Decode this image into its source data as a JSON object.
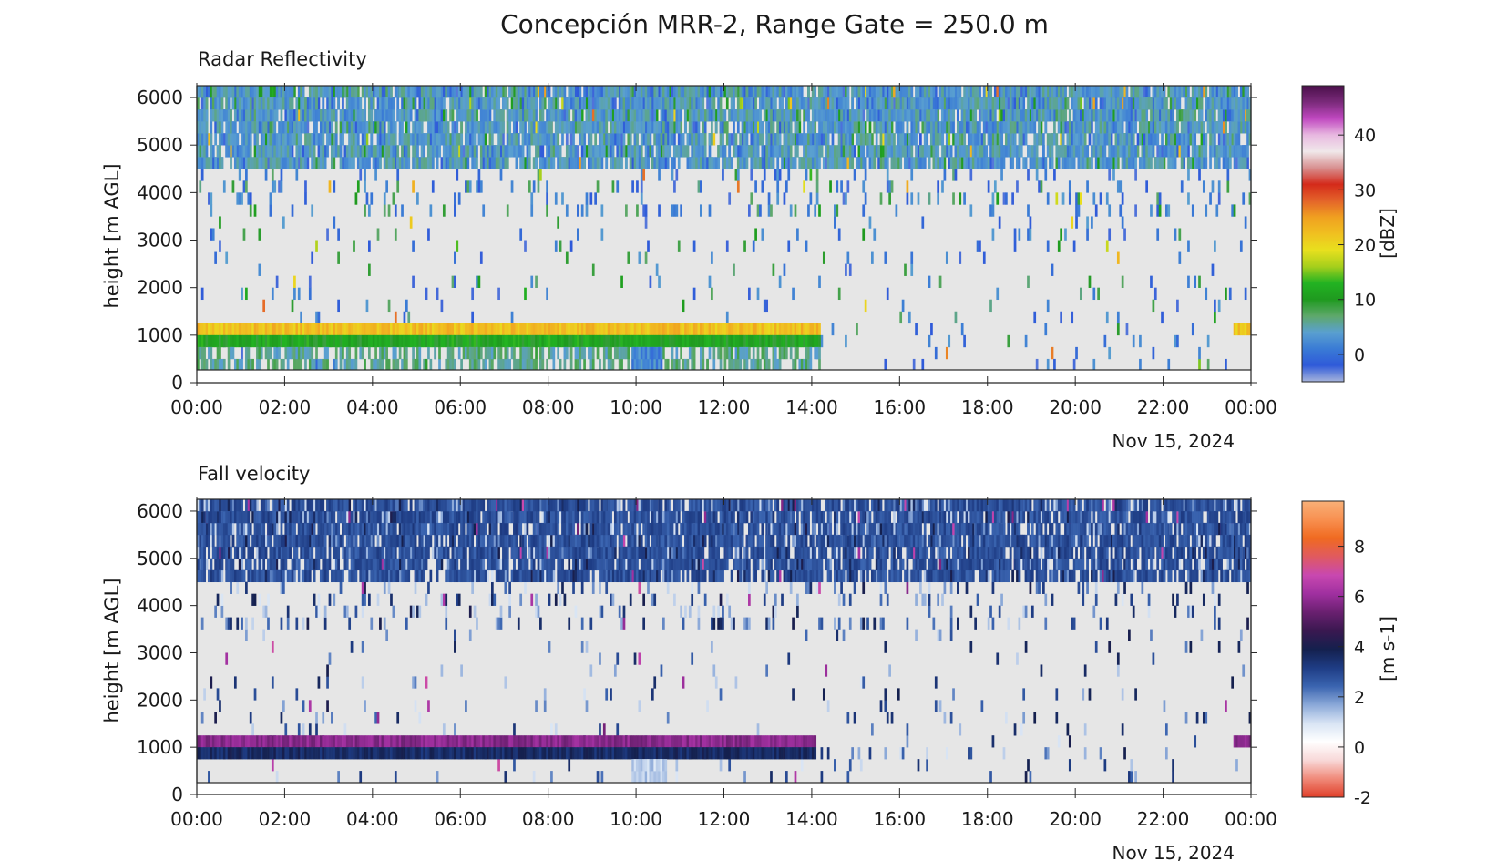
{
  "figure": {
    "title": "Concepción MRR-2, Range Gate = 250.0 m"
  },
  "chart_data": [
    {
      "type": "heatmap",
      "title": "Radar Reflectivity",
      "ylabel": "height [m AGL]",
      "date_label": "Nov 15, 2024",
      "x_ticks": [
        "00:00",
        "02:00",
        "04:00",
        "06:00",
        "08:00",
        "10:00",
        "12:00",
        "14:00",
        "16:00",
        "18:00",
        "20:00",
        "22:00",
        "00:00"
      ],
      "xlim_hours": [
        0,
        24
      ],
      "y_ticks": [
        0,
        1000,
        2000,
        3000,
        4000,
        5000,
        6000
      ],
      "ylim": [
        0,
        6250
      ],
      "data_height_range": [
        250,
        6250
      ],
      "grid": false,
      "background_color": "#e6e6e6",
      "colorbar": {
        "label": "[dBZ]",
        "range": [
          -5,
          49
        ],
        "ticks": [
          0,
          10,
          20,
          30,
          40
        ],
        "colors": [
          "#a7b4dc",
          "#2f5ad9",
          "#3a7bd5",
          "#5aa0d0",
          "#5ea86a",
          "#1f9a1f",
          "#22b322",
          "#a6cf1c",
          "#e8e01e",
          "#f0c020",
          "#f0a020",
          "#e4642a",
          "#d42a1a",
          "#d89090",
          "#f0e8ea",
          "#e8b8e0",
          "#c048c0",
          "#7a2a7a",
          "#4a0f4a"
        ]
      },
      "features": [
        {
          "name": "bright band",
          "time_hours": [
            0,
            14.2
          ],
          "height_m": [
            1000,
            1250
          ],
          "value_dbz": 22
        },
        {
          "name": "rain below melting layer",
          "time_hours": [
            0,
            14.2
          ],
          "height_m": [
            750,
            1000
          ],
          "value_dbz": 11
        },
        {
          "name": "light rain to surface",
          "time_hours": [
            0,
            14.2
          ],
          "height_m": [
            250,
            750
          ],
          "value_dbz": 6
        },
        {
          "name": "bright band (late)",
          "time_hours": [
            23.6,
            24
          ],
          "height_m": [
            1000,
            1250
          ],
          "value_dbz": 22
        },
        {
          "name": "strong rain column",
          "time_hours": [
            9.9,
            10.6
          ],
          "height_m": [
            250,
            750
          ],
          "value_dbz": 2
        },
        {
          "name": "upper echo layer",
          "time_hours": [
            0,
            24
          ],
          "height_m": [
            4500,
            6250
          ],
          "value_dbz": 4
        }
      ]
    },
    {
      "type": "heatmap",
      "title": "Fall velocity",
      "ylabel": "height [m AGL]",
      "date_label": "Nov 15, 2024",
      "x_ticks": [
        "00:00",
        "02:00",
        "04:00",
        "06:00",
        "08:00",
        "10:00",
        "12:00",
        "14:00",
        "16:00",
        "18:00",
        "20:00",
        "22:00",
        "00:00"
      ],
      "xlim_hours": [
        0,
        24
      ],
      "y_ticks": [
        0,
        1000,
        2000,
        3000,
        4000,
        5000,
        6000
      ],
      "ylim": [
        0,
        6250
      ],
      "data_height_range": [
        250,
        6250
      ],
      "grid": false,
      "background_color": "#e6e6e6",
      "colorbar": {
        "label": "[m s-1]",
        "range": [
          -2,
          9.8
        ],
        "ticks": [
          -2,
          0,
          2,
          4,
          6,
          8
        ],
        "colors": [
          "#e0402a",
          "#f08a7a",
          "#f8d8d8",
          "#ffffff",
          "#d8e4f4",
          "#8aa8d8",
          "#3a64b0",
          "#1e3c84",
          "#14204e",
          "#3a1850",
          "#6a2070",
          "#a030a0",
          "#c848b0",
          "#e05a60",
          "#f06a20",
          "#f89050",
          "#f8b078"
        ]
      },
      "features": [
        {
          "name": "melting layer",
          "time_hours": [
            0,
            14.1
          ],
          "height_m": [
            1000,
            1250
          ],
          "value_ms": 5.8
        },
        {
          "name": "rain below melting layer",
          "time_hours": [
            0,
            14.1
          ],
          "height_m": [
            750,
            1000
          ],
          "value_ms": 3.6
        },
        {
          "name": "melting layer (late)",
          "time_hours": [
            23.6,
            24
          ],
          "height_m": [
            1000,
            1250
          ],
          "value_ms": 5.8
        },
        {
          "name": "slow column",
          "time_hours": [
            9.9,
            10.7
          ],
          "height_m": [
            250,
            750
          ],
          "value_ms": 1.2
        },
        {
          "name": "upper echo layer",
          "time_hours": [
            0,
            24
          ],
          "height_m": [
            4500,
            6250
          ],
          "value_ms": 2.8
        }
      ]
    }
  ]
}
